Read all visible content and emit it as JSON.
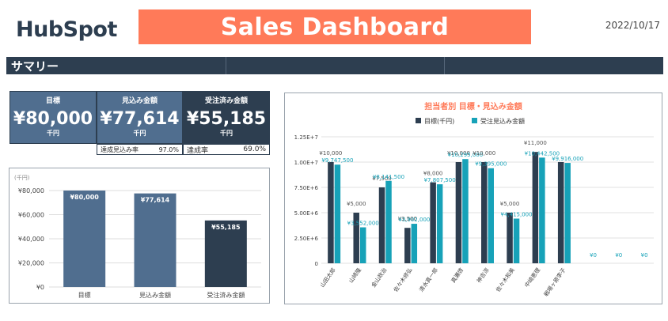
{
  "header": {
    "logo_text": "HubSpot",
    "title": "Sales Dashboard",
    "date": "2022/10/17"
  },
  "summary": {
    "label": "サマリー"
  },
  "kpis": {
    "target": {
      "label": "目標",
      "value": "¥80,000",
      "unit": "千円"
    },
    "forecast": {
      "label": "見込み金額",
      "value": "¥77,614",
      "unit": "千円"
    },
    "won": {
      "label": "受注済み金額",
      "value": "¥55,185",
      "unit": "千円"
    }
  },
  "rates": {
    "forecast": {
      "label": "達成見込み率",
      "value": "97.0%"
    },
    "won": {
      "label": "達成率",
      "value": "69.0%"
    }
  },
  "colors": {
    "dark": "#2d3e50",
    "slate": "#506e8f",
    "teal": "#17a2b8",
    "accent": "#ff7a59"
  },
  "chart_data": [
    {
      "type": "bar",
      "ylabel": "(千円)",
      "categories": [
        "目標",
        "見込み金額",
        "受注済み金額"
      ],
      "values": [
        80000,
        77614,
        55185
      ],
      "data_labels": [
        "¥80,000",
        "¥77,614",
        "¥55,185"
      ],
      "bar_colors": [
        "#506e8f",
        "#506e8f",
        "#2d3e50"
      ],
      "ylim": [
        0,
        80000
      ],
      "y_ticks": [
        0,
        20000,
        40000,
        60000,
        80000
      ],
      "y_tick_labels": [
        "¥0",
        "¥20,000",
        "¥40,000",
        "¥60,000",
        "¥80,000"
      ],
      "grid": true
    },
    {
      "type": "bar",
      "title": "担当者別 目標・見込み金額",
      "legend_position": "top",
      "categories": [
        "山田太郎",
        "山崎隆",
        "金山政治",
        "佐々木修弘",
        "清水真一郎",
        "真瀬啓",
        "神吉涼",
        "佐々木和美",
        "中崎恵理",
        "戦場ヶ原李子",
        "",
        "",
        ""
      ],
      "series": [
        {
          "name": "目標(千円)",
          "color": "#2d3e50",
          "values": [
            10000,
            5000,
            7500,
            3500,
            8000,
            10000,
            10000,
            5000,
            11000,
            10000,
            0,
            0,
            0
          ],
          "labels": [
            "¥10,000",
            "¥5,000",
            "¥7,500",
            "¥3,500",
            "¥8,000",
            "¥10,000",
            "¥10,000",
            "¥5,000",
            "¥11,000",
            "",
            "",
            "",
            ""
          ]
        },
        {
          "name": "受注見込み金額",
          "color": "#17a2b8",
          "values": [
            9747.5,
            3552,
            8141.5,
            3902,
            7807.5,
            10295,
            9395,
            4415,
            10442.5,
            9916,
            0,
            0,
            0
          ],
          "labels": [
            "¥9,747,500",
            "¥3,552,000",
            "¥8,141,500",
            "¥3,902,000",
            "¥7,807,500",
            "¥10,295,000",
            "¥9,395,000",
            "¥4,415,000",
            "¥10,442,500",
            "¥9,916,000",
            "¥0",
            "¥0",
            "¥0"
          ]
        }
      ],
      "ylim": [
        0,
        12500
      ],
      "y_ticks": [
        0,
        2500,
        5000,
        7500,
        10000,
        12500
      ],
      "y_tick_labels": [
        "0",
        "2.50E+6",
        "5.00E+6",
        "7.50E+6",
        "1.00E+7",
        "1.25E+7"
      ],
      "grid": true
    }
  ]
}
